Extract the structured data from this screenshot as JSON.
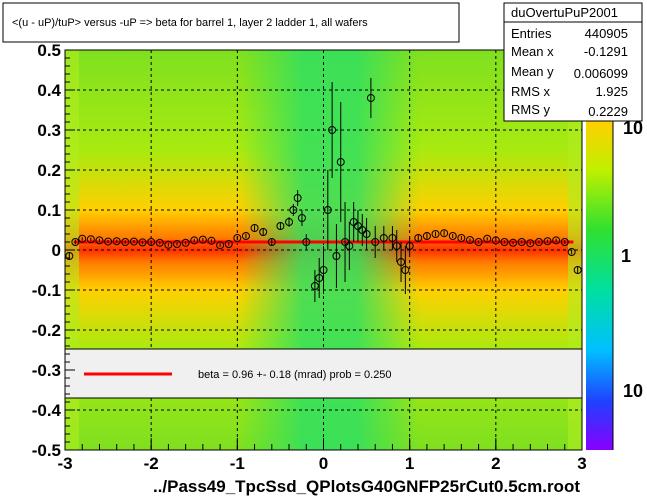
{
  "title": "<(u - uP)/tuP> versus  -uP => beta for barrel 1, layer 2 ladder 1, all wafers",
  "stats": {
    "name": "duOvertuPuP2001",
    "entries_label": "Entries",
    "entries": "440905",
    "meanx_label": "Mean x",
    "meanx": "-0.1291",
    "meany_label": "Mean y",
    "meany": "0.006099",
    "rmsx_label": "RMS x",
    "rmsx": "1.925",
    "rmsy_label": "RMS y",
    "rmsy": "0.2229"
  },
  "fit_legend": "beta =    0.96 +-  0.18 (mrad) prob = 0.250",
  "xlabel": "../Pass49_TpcSsd_QPlotsG40GNFP25rCut0.5cm.root",
  "colorbar_ticks": [
    "10",
    "1",
    "10"
  ],
  "colors": {
    "fit_line": "#ff0000",
    "marker": "#000000",
    "frame": "#000000"
  },
  "chart_data": {
    "type": "scatter",
    "title": "<(u - uP)/tuP> versus  -uP => beta for barrel 1, layer 2 ladder 1, all wafers",
    "xlabel": "../Pass49_TpcSsd_QPlotsG40GNFP25rCut0.5cm.root",
    "ylabel": "",
    "xlim": [
      -3,
      3
    ],
    "ylim": [
      -0.5,
      0.5
    ],
    "xticks": [
      "-3",
      "-2",
      "-1",
      "0",
      "1",
      "2",
      "3"
    ],
    "yticks": [
      "-0.5",
      "-0.4",
      "-0.3",
      "-0.2",
      "-0.1",
      "0",
      "0.1",
      "0.2",
      "0.3",
      "0.4",
      "0.5"
    ],
    "grid": true,
    "background": "2D histogram, color scale (log z)",
    "fit": {
      "type": "line",
      "y": 0.02,
      "x_range": [
        -2.9,
        2.9
      ]
    },
    "profile_points": [
      {
        "x": -2.95,
        "y": -0.015,
        "err": 0.01
      },
      {
        "x": -2.88,
        "y": 0.02,
        "err": 0.006
      },
      {
        "x": -2.8,
        "y": 0.028,
        "err": 0.004
      },
      {
        "x": -2.7,
        "y": 0.027,
        "err": 0.004
      },
      {
        "x": -2.6,
        "y": 0.024,
        "err": 0.004
      },
      {
        "x": -2.5,
        "y": 0.021,
        "err": 0.004
      },
      {
        "x": -2.4,
        "y": 0.022,
        "err": 0.004
      },
      {
        "x": -2.3,
        "y": 0.02,
        "err": 0.004
      },
      {
        "x": -2.2,
        "y": 0.021,
        "err": 0.004
      },
      {
        "x": -2.1,
        "y": 0.019,
        "err": 0.004
      },
      {
        "x": -2.0,
        "y": 0.02,
        "err": 0.004
      },
      {
        "x": -1.9,
        "y": 0.018,
        "err": 0.004
      },
      {
        "x": -1.8,
        "y": 0.013,
        "err": 0.004
      },
      {
        "x": -1.7,
        "y": 0.015,
        "err": 0.004
      },
      {
        "x": -1.6,
        "y": 0.018,
        "err": 0.004
      },
      {
        "x": -1.5,
        "y": 0.024,
        "err": 0.004
      },
      {
        "x": -1.4,
        "y": 0.026,
        "err": 0.004
      },
      {
        "x": -1.3,
        "y": 0.023,
        "err": 0.004
      },
      {
        "x": -1.2,
        "y": 0.012,
        "err": 0.004
      },
      {
        "x": -1.1,
        "y": 0.015,
        "err": 0.004
      },
      {
        "x": -1.0,
        "y": 0.03,
        "err": 0.005
      },
      {
        "x": -0.9,
        "y": 0.035,
        "err": 0.006
      },
      {
        "x": -0.8,
        "y": 0.055,
        "err": 0.007
      },
      {
        "x": -0.7,
        "y": 0.045,
        "err": 0.008
      },
      {
        "x": -0.6,
        "y": 0.02,
        "err": 0.008
      },
      {
        "x": -0.5,
        "y": 0.06,
        "err": 0.01
      },
      {
        "x": -0.4,
        "y": 0.07,
        "err": 0.012
      },
      {
        "x": -0.35,
        "y": 0.1,
        "err": 0.015
      },
      {
        "x": -0.3,
        "y": 0.13,
        "err": 0.02
      },
      {
        "x": -0.25,
        "y": 0.08,
        "err": 0.02
      },
      {
        "x": -0.2,
        "y": 0.02,
        "err": 0.02
      },
      {
        "x": -0.1,
        "y": -0.09,
        "err": 0.04
      },
      {
        "x": -0.05,
        "y": -0.07,
        "err": 0.05
      },
      {
        "x": 0.0,
        "y": -0.05,
        "err": 0.06
      },
      {
        "x": 0.05,
        "y": 0.1,
        "err": 0.1
      },
      {
        "x": 0.1,
        "y": 0.3,
        "err": 0.12
      },
      {
        "x": 0.15,
        "y": -0.015,
        "err": 0.08
      },
      {
        "x": 0.2,
        "y": 0.22,
        "err": 0.15
      },
      {
        "x": 0.25,
        "y": 0.02,
        "err": 0.1
      },
      {
        "x": 0.3,
        "y": 0.01,
        "err": 0.06
      },
      {
        "x": 0.35,
        "y": 0.07,
        "err": 0.05
      },
      {
        "x": 0.4,
        "y": 0.06,
        "err": 0.04
      },
      {
        "x": 0.45,
        "y": 0.05,
        "err": 0.04
      },
      {
        "x": 0.5,
        "y": 0.04,
        "err": 0.04
      },
      {
        "x": 0.55,
        "y": 0.38,
        "err": 0.05
      },
      {
        "x": 0.6,
        "y": 0.02,
        "err": 0.04
      },
      {
        "x": 0.7,
        "y": 0.03,
        "err": 0.03
      },
      {
        "x": 0.8,
        "y": 0.03,
        "err": 0.03
      },
      {
        "x": 0.85,
        "y": 0.01,
        "err": 0.04
      },
      {
        "x": 0.9,
        "y": -0.03,
        "err": 0.05
      },
      {
        "x": 0.95,
        "y": -0.05,
        "err": 0.06
      },
      {
        "x": 1.0,
        "y": 0.01,
        "err": 0.02
      },
      {
        "x": 1.1,
        "y": 0.03,
        "err": 0.008
      },
      {
        "x": 1.2,
        "y": 0.035,
        "err": 0.007
      },
      {
        "x": 1.3,
        "y": 0.04,
        "err": 0.006
      },
      {
        "x": 1.4,
        "y": 0.042,
        "err": 0.006
      },
      {
        "x": 1.5,
        "y": 0.035,
        "err": 0.005
      },
      {
        "x": 1.6,
        "y": 0.03,
        "err": 0.005
      },
      {
        "x": 1.7,
        "y": 0.025,
        "err": 0.004
      },
      {
        "x": 1.8,
        "y": 0.02,
        "err": 0.004
      },
      {
        "x": 1.9,
        "y": 0.028,
        "err": 0.004
      },
      {
        "x": 2.0,
        "y": 0.024,
        "err": 0.004
      },
      {
        "x": 2.1,
        "y": 0.02,
        "err": 0.004
      },
      {
        "x": 2.2,
        "y": 0.018,
        "err": 0.004
      },
      {
        "x": 2.3,
        "y": 0.02,
        "err": 0.004
      },
      {
        "x": 2.4,
        "y": 0.017,
        "err": 0.004
      },
      {
        "x": 2.5,
        "y": 0.02,
        "err": 0.004
      },
      {
        "x": 2.6,
        "y": 0.022,
        "err": 0.004
      },
      {
        "x": 2.7,
        "y": 0.024,
        "err": 0.004
      },
      {
        "x": 2.8,
        "y": 0.02,
        "err": 0.005
      },
      {
        "x": 2.88,
        "y": -0.005,
        "err": 0.006
      },
      {
        "x": 2.95,
        "y": -0.05,
        "err": 0.01
      }
    ]
  }
}
